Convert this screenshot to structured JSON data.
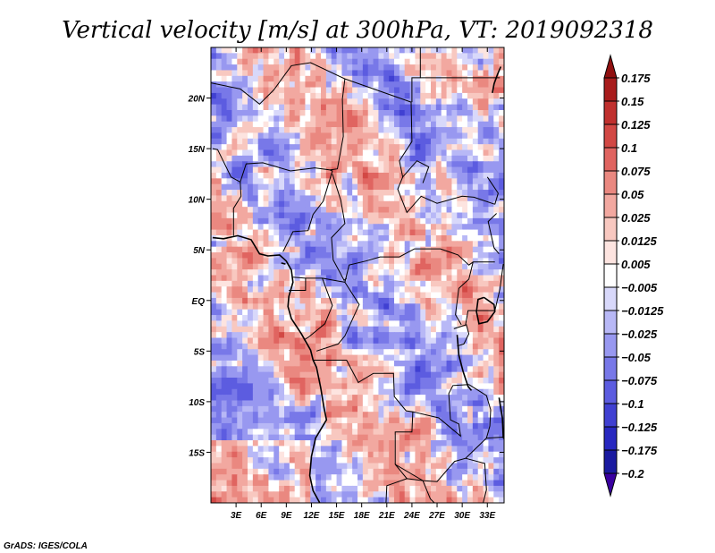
{
  "chart_data": {
    "type": "heatmap",
    "title": "Vertical velocity [m/s] at 300hPa, VT: 2019092318",
    "xlabel": "",
    "ylabel": "",
    "x_ticks": [
      "3E",
      "6E",
      "9E",
      "12E",
      "15E",
      "18E",
      "21E",
      "24E",
      "27E",
      "30E",
      "33E"
    ],
    "x_tick_values": [
      3,
      6,
      9,
      12,
      15,
      18,
      21,
      24,
      27,
      30,
      33
    ],
    "y_ticks": [
      "20N",
      "15N",
      "10N",
      "5N",
      "EQ",
      "5S",
      "10S",
      "15S"
    ],
    "y_tick_values": [
      20,
      15,
      10,
      5,
      0,
      -5,
      -10,
      -15
    ],
    "xlim": [
      0,
      35
    ],
    "ylim": [
      -20,
      25
    ],
    "colorbar": {
      "levels": [
        "0.175",
        "0.15",
        "0.125",
        "0.1",
        "0.075",
        "0.05",
        "0.025",
        "0.0125",
        "0.005",
        "-0.005",
        "-0.0125",
        "-0.025",
        "-0.05",
        "-0.075",
        "-0.1",
        "-0.125",
        "-0.175",
        "-0.2"
      ],
      "colors": [
        "#3a00a0",
        "#1a1aa0",
        "#2828c0",
        "#4040d2",
        "#5c5ce0",
        "#7878e8",
        "#9898f0",
        "#b8b8f6",
        "#d8d8fa",
        "#ffffff",
        "#fde4e0",
        "#f8c8c0",
        "#f2a8a0",
        "#ea8880",
        "#e06460",
        "#d24844",
        "#c0302e",
        "#a81c1c",
        "#901010"
      ]
    },
    "field": {
      "grid_size": [
        56,
        80
      ],
      "seed": 20190923,
      "value_range": [
        -0.2,
        0.175
      ]
    }
  },
  "credit": "GrADS: IGES/COLA"
}
